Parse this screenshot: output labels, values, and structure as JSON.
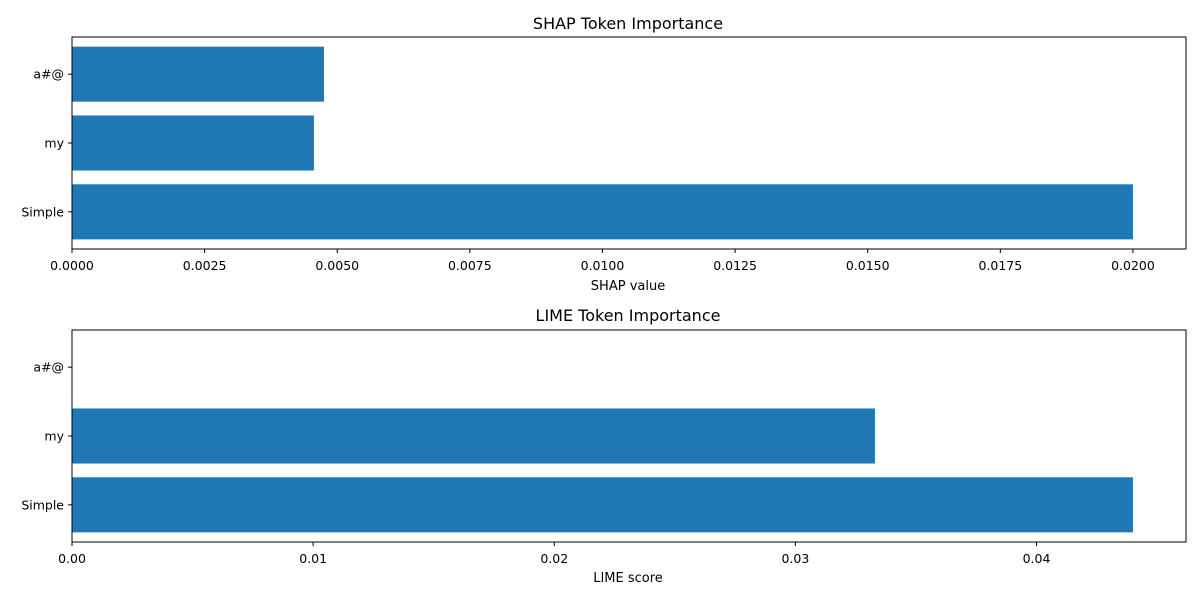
{
  "colors": {
    "bar": "#1f77b4",
    "axis": "#000000"
  },
  "chart_data": [
    {
      "type": "bar",
      "orientation": "horizontal",
      "title": "SHAP Token Importance",
      "xlabel": "SHAP value",
      "ylabel": "",
      "categories": [
        "Simple",
        "my",
        "a#@"
      ],
      "values": [
        0.02,
        0.00456,
        0.00475
      ],
      "xlim": [
        0,
        0.021
      ],
      "xticks": [
        0,
        0.0025,
        0.005,
        0.0075,
        0.01,
        0.0125,
        0.015,
        0.0175,
        0.02
      ],
      "xtick_labels": [
        "0.0000",
        "0.0025",
        "0.0050",
        "0.0075",
        "0.0100",
        "0.0125",
        "0.0150",
        "0.0175",
        "0.0200"
      ],
      "grid": false
    },
    {
      "type": "bar",
      "orientation": "horizontal",
      "title": "LIME Token Importance",
      "xlabel": "LIME score",
      "ylabel": "",
      "categories": [
        "Simple",
        "my",
        "a#@"
      ],
      "values": [
        0.044,
        0.0333,
        0.0
      ],
      "xlim": [
        0,
        0.0462
      ],
      "xticks": [
        0,
        0.01,
        0.02,
        0.03,
        0.04
      ],
      "xtick_labels": [
        "0.00",
        "0.01",
        "0.02",
        "0.03",
        "0.04"
      ],
      "grid": false
    }
  ]
}
